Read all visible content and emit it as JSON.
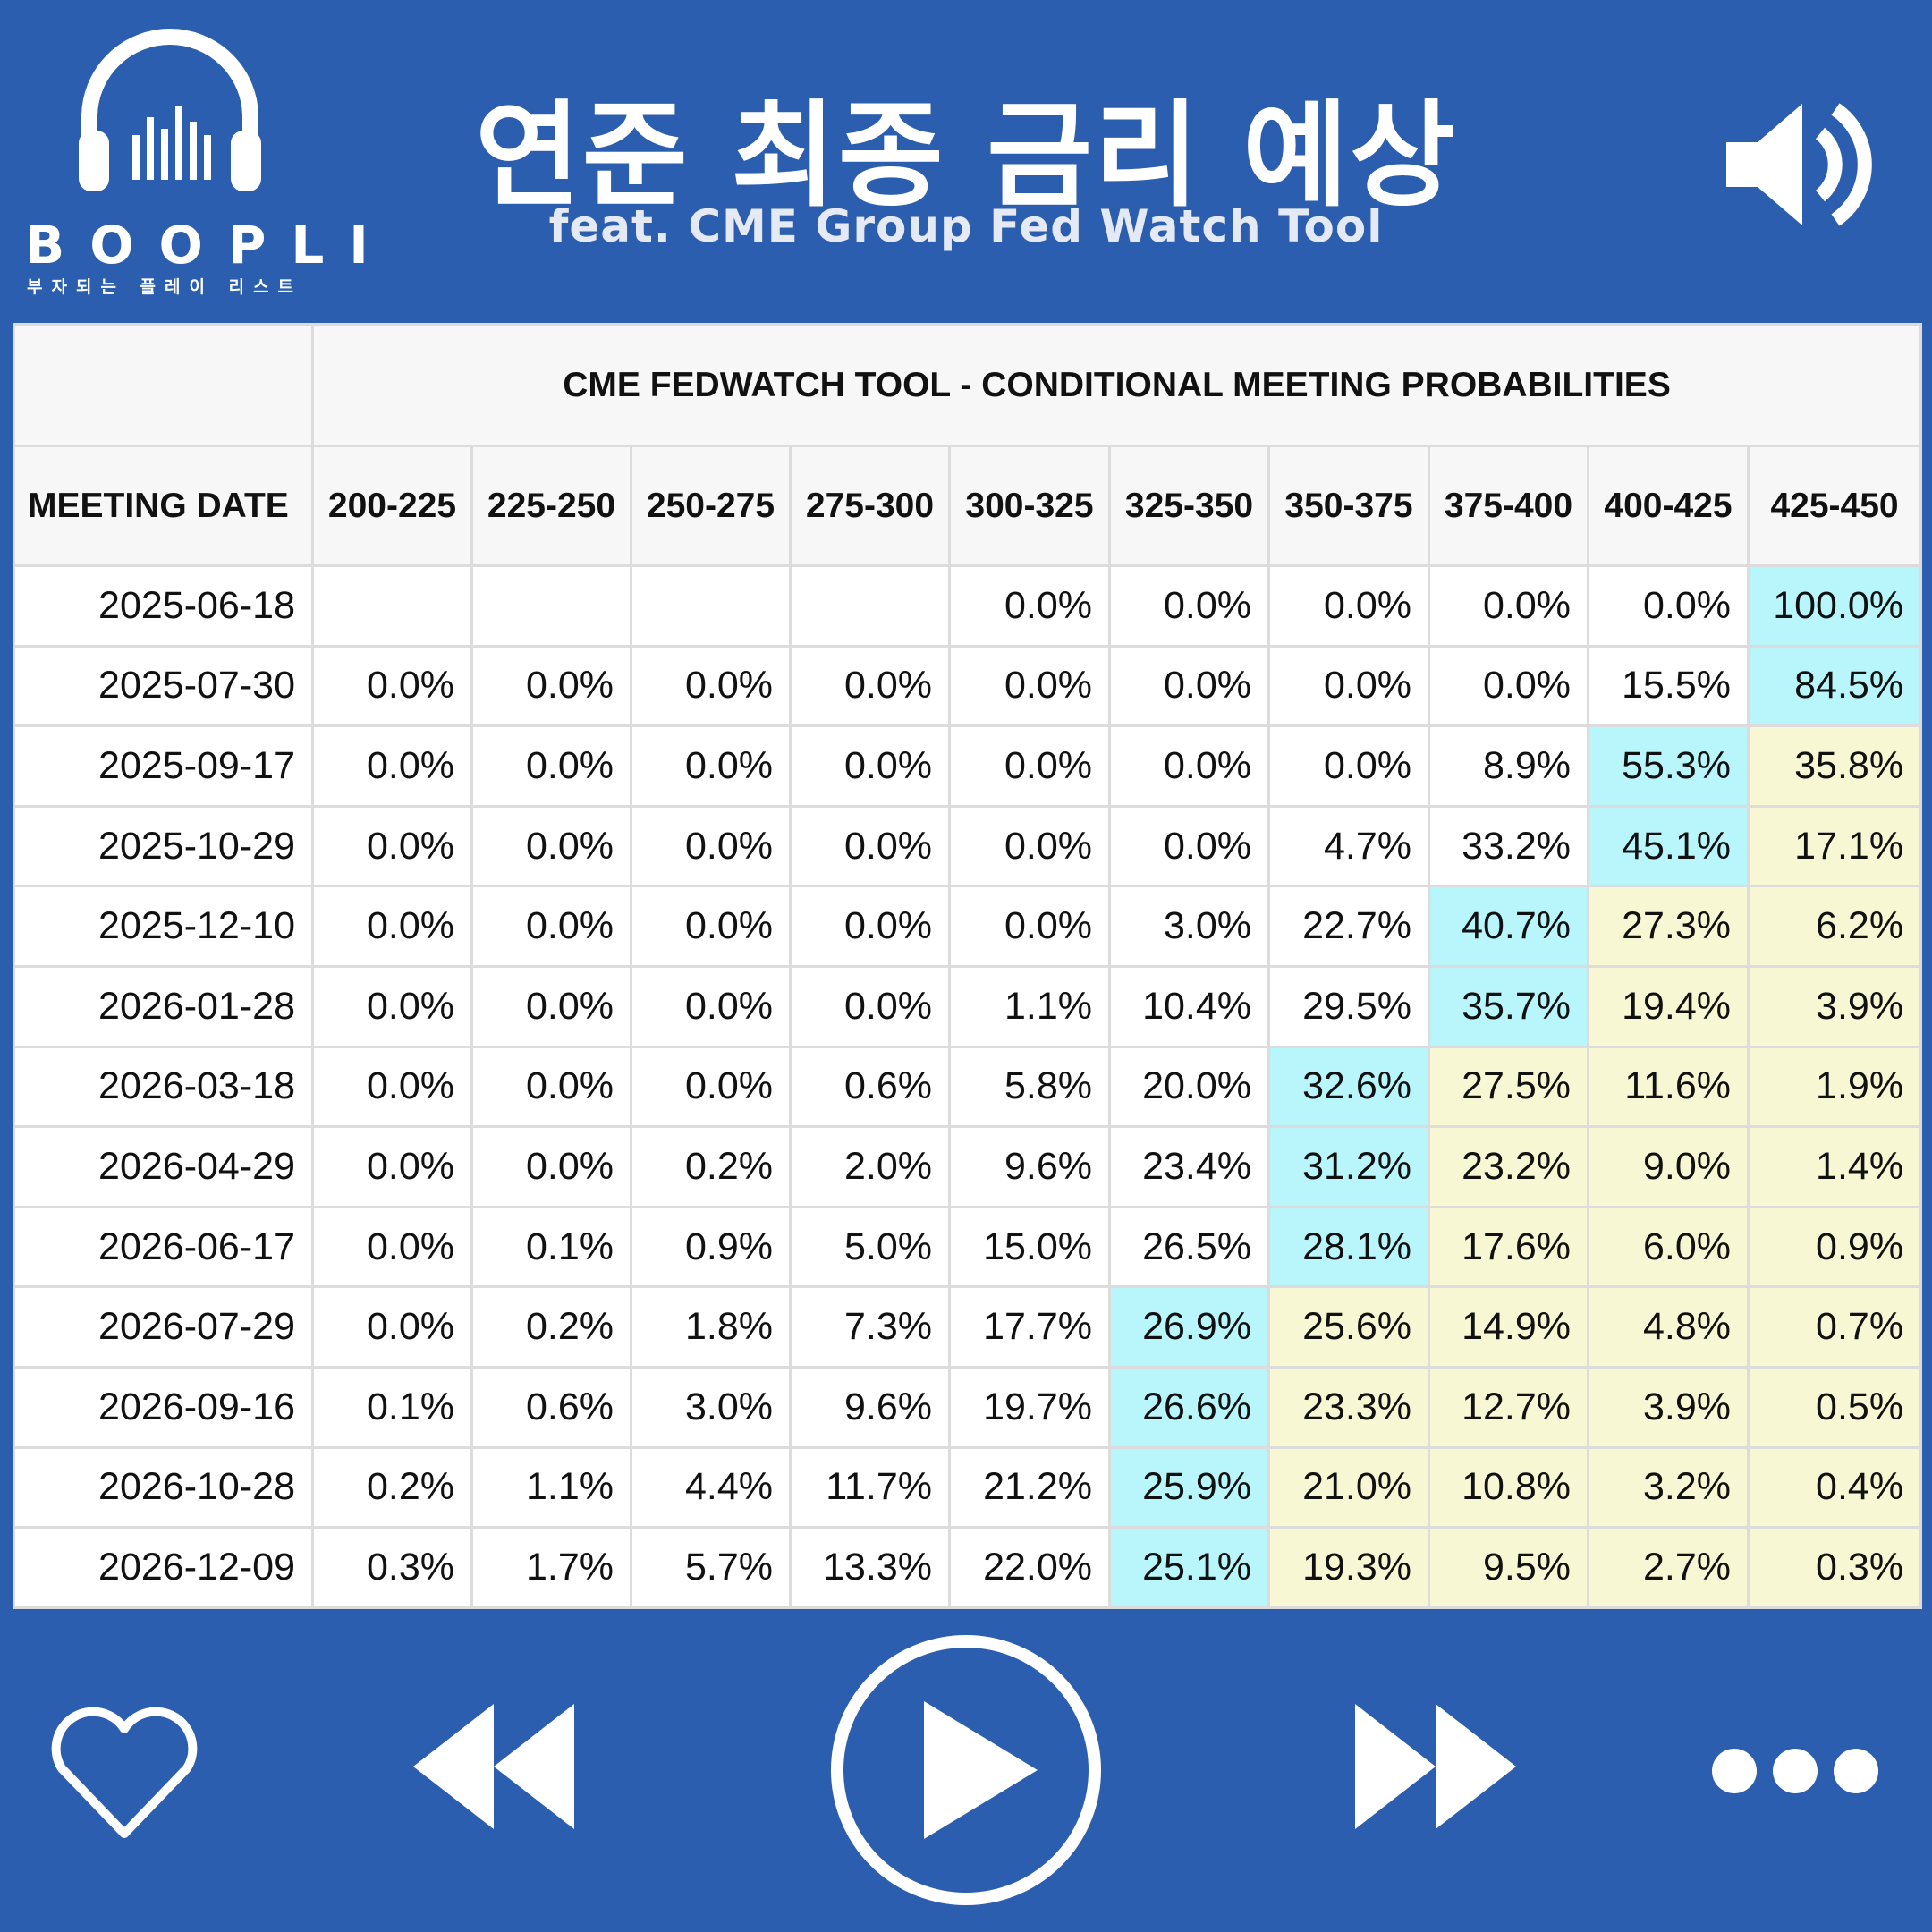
{
  "header": {
    "brand": "BOOPLI",
    "brand_tagline": "부자되는 플레이 리스트",
    "title": "연준 최종 금리 예상",
    "subtitle": "feat. CME Group Fed Watch Tool"
  },
  "table": {
    "caption": "CME FEDWATCH TOOL - CONDITIONAL MEETING PROBABILITIES",
    "date_header": "MEETING DATE",
    "columns": [
      "200-225",
      "225-250",
      "250-275",
      "275-300",
      "300-325",
      "325-350",
      "350-375",
      "375-400",
      "400-425",
      "425-450"
    ],
    "highlight_color": "#b9f6fb",
    "shade_color": "#f8f7d4",
    "rows": [
      {
        "date": "2025-06-18",
        "values": [
          "",
          "",
          "",
          "",
          "0.0%",
          "0.0%",
          "0.0%",
          "0.0%",
          "0.0%",
          "100.0%"
        ],
        "hl": 9
      },
      {
        "date": "2025-07-30",
        "values": [
          "0.0%",
          "0.0%",
          "0.0%",
          "0.0%",
          "0.0%",
          "0.0%",
          "0.0%",
          "0.0%",
          "15.5%",
          "84.5%"
        ],
        "hl": 9
      },
      {
        "date": "2025-09-17",
        "values": [
          "0.0%",
          "0.0%",
          "0.0%",
          "0.0%",
          "0.0%",
          "0.0%",
          "0.0%",
          "8.9%",
          "55.3%",
          "35.8%"
        ],
        "hl": 8
      },
      {
        "date": "2025-10-29",
        "values": [
          "0.0%",
          "0.0%",
          "0.0%",
          "0.0%",
          "0.0%",
          "0.0%",
          "4.7%",
          "33.2%",
          "45.1%",
          "17.1%"
        ],
        "hl": 8
      },
      {
        "date": "2025-12-10",
        "values": [
          "0.0%",
          "0.0%",
          "0.0%",
          "0.0%",
          "0.0%",
          "3.0%",
          "22.7%",
          "40.7%",
          "27.3%",
          "6.2%"
        ],
        "hl": 7
      },
      {
        "date": "2026-01-28",
        "values": [
          "0.0%",
          "0.0%",
          "0.0%",
          "0.0%",
          "1.1%",
          "10.4%",
          "29.5%",
          "35.7%",
          "19.4%",
          "3.9%"
        ],
        "hl": 7
      },
      {
        "date": "2026-03-18",
        "values": [
          "0.0%",
          "0.0%",
          "0.0%",
          "0.6%",
          "5.8%",
          "20.0%",
          "32.6%",
          "27.5%",
          "11.6%",
          "1.9%"
        ],
        "hl": 6
      },
      {
        "date": "2026-04-29",
        "values": [
          "0.0%",
          "0.0%",
          "0.2%",
          "2.0%",
          "9.6%",
          "23.4%",
          "31.2%",
          "23.2%",
          "9.0%",
          "1.4%"
        ],
        "hl": 6
      },
      {
        "date": "2026-06-17",
        "values": [
          "0.0%",
          "0.1%",
          "0.9%",
          "5.0%",
          "15.0%",
          "26.5%",
          "28.1%",
          "17.6%",
          "6.0%",
          "0.9%"
        ],
        "hl": 6
      },
      {
        "date": "2026-07-29",
        "values": [
          "0.0%",
          "0.2%",
          "1.8%",
          "7.3%",
          "17.7%",
          "26.9%",
          "25.6%",
          "14.9%",
          "4.8%",
          "0.7%"
        ],
        "hl": 5
      },
      {
        "date": "2026-09-16",
        "values": [
          "0.1%",
          "0.6%",
          "3.0%",
          "9.6%",
          "19.7%",
          "26.6%",
          "23.3%",
          "12.7%",
          "3.9%",
          "0.5%"
        ],
        "hl": 5
      },
      {
        "date": "2026-10-28",
        "values": [
          "0.2%",
          "1.1%",
          "4.4%",
          "11.7%",
          "21.2%",
          "25.9%",
          "21.0%",
          "10.8%",
          "3.2%",
          "0.4%"
        ],
        "hl": 5
      },
      {
        "date": "2026-12-09",
        "values": [
          "0.3%",
          "1.7%",
          "5.7%",
          "13.3%",
          "22.0%",
          "25.1%",
          "19.3%",
          "9.5%",
          "2.7%",
          "0.3%"
        ],
        "hl": 5
      }
    ]
  },
  "controls": {
    "icons": [
      "heart-icon",
      "rewind-icon",
      "play-icon",
      "fast-forward-icon",
      "more-icon",
      "speaker-icon",
      "headphones-icon"
    ]
  }
}
